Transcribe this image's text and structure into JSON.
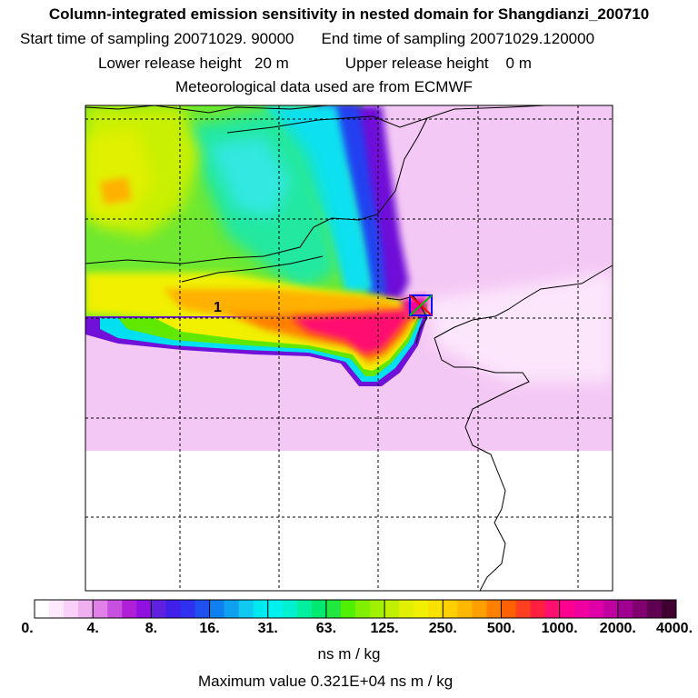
{
  "header": {
    "title": "Column-integrated emission sensitivity in nested domain for Shangdianzi_200710",
    "start_label": "Start time of sampling 20071029. 90000",
    "end_label": "End time of sampling 20071029.120000",
    "lower_label": "Lower release height   20 m",
    "upper_label": "Upper release height    0 m",
    "met_label": "Meteorological data used are from ECMWF"
  },
  "map": {
    "release_point_label": "1",
    "marker_colors": [
      "#ff0000",
      "#00c000",
      "#0000ff"
    ]
  },
  "colorbar": {
    "tick_labels": [
      "0.",
      "4.",
      "8.",
      "16.",
      "31.",
      "63.",
      "125.",
      "250.",
      "500.",
      "1000.",
      "2000.",
      "4000."
    ],
    "colors": [
      "#ffffff",
      "#fde8fd",
      "#f8d0f8",
      "#f0b0f0",
      "#e080e8",
      "#c850e0",
      "#b020d8",
      "#9010e0",
      "#6020e0",
      "#4020e8",
      "#3030f0",
      "#2050f0",
      "#1080f0",
      "#10a0f0",
      "#10c8f0",
      "#00e8f0",
      "#00f0f0",
      "#00f0d0",
      "#00f0a0",
      "#00e870",
      "#20e840",
      "#50f000",
      "#80f000",
      "#a0f000",
      "#c0f000",
      "#e0f000",
      "#f0f000",
      "#f8e000",
      "#ffd000",
      "#ffb800",
      "#ffa000",
      "#ff8000",
      "#ff6000",
      "#ff4020",
      "#ff2040",
      "#ff1070",
      "#ff0090",
      "#f000a0",
      "#e000a8",
      "#c000a0",
      "#a00090",
      "#800070",
      "#600050",
      "#400030"
    ]
  },
  "unit_label": "ns m / kg",
  "max_label": "Maximum value  0.321E+04 ns m / kg"
}
